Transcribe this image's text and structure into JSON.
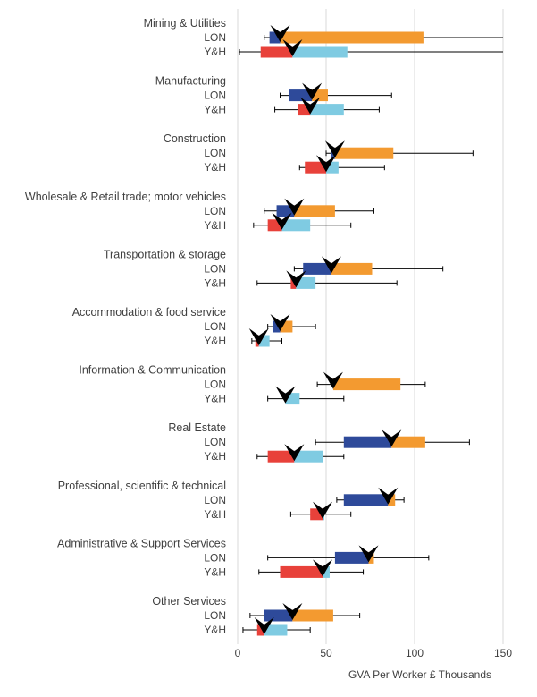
{
  "chart_data": {
    "type": "box-range",
    "xlabel": "GVA Per Worker £ Thousands",
    "xlim": [
      0,
      150
    ],
    "xticks": [
      0,
      50,
      100,
      150
    ],
    "grid": "vertical",
    "region_labels": [
      "LON",
      "Y&H"
    ],
    "colors": {
      "LON_low": "#2E4A9A",
      "LON_high": "#F39A30",
      "YH_low": "#E8413A",
      "YH_high": "#7FCBE2",
      "grid": "#D9D9D9",
      "whisker": "#000000",
      "marker": "#000000"
    },
    "sectors": [
      {
        "name": "Mining & Utilities",
        "LON": {
          "min": 15,
          "q1": 18,
          "median": 24,
          "q3": 105,
          "max": 150
        },
        "YH": {
          "min": 1,
          "q1": 13,
          "median": 31,
          "q3": 62,
          "max": 150
        }
      },
      {
        "name": "Manufacturing",
        "LON": {
          "min": 24,
          "q1": 29,
          "median": 42,
          "q3": 51,
          "max": 87
        },
        "YH": {
          "min": 21,
          "q1": 34,
          "median": 41,
          "q3": 60,
          "max": 80
        }
      },
      {
        "name": "Construction",
        "LON": {
          "min": 50,
          "q1": 53,
          "median": 55,
          "q3": 88,
          "max": 133
        },
        "YH": {
          "min": 35,
          "q1": 38,
          "median": 50,
          "q3": 57,
          "max": 83
        }
      },
      {
        "name": "Wholesale & Retail trade; motor vehicles",
        "LON": {
          "min": 15,
          "q1": 22,
          "median": 32,
          "q3": 55,
          "max": 77
        },
        "YH": {
          "min": 9,
          "q1": 17,
          "median": 25,
          "q3": 41,
          "max": 64
        }
      },
      {
        "name": "Transportation & storage",
        "LON": {
          "min": 32,
          "q1": 37,
          "median": 53,
          "q3": 76,
          "max": 116
        },
        "YH": {
          "min": 11,
          "q1": 30,
          "median": 33,
          "q3": 44,
          "max": 90
        }
      },
      {
        "name": "Accommodation & food service",
        "LON": {
          "min": 17,
          "q1": 20,
          "median": 24,
          "q3": 31,
          "max": 44
        },
        "YH": {
          "min": 8,
          "q1": 10,
          "median": 12,
          "q3": 18,
          "max": 25
        }
      },
      {
        "name": "Information & Communication",
        "LON": {
          "min": 45,
          "q1": 54,
          "median": 54,
          "q3": 92,
          "max": 106
        },
        "YH": {
          "min": 17,
          "q1": 27,
          "median": 27,
          "q3": 35,
          "max": 60
        }
      },
      {
        "name": "Real Estate",
        "LON": {
          "min": 44,
          "q1": 60,
          "median": 87,
          "q3": 106,
          "max": 131
        },
        "YH": {
          "min": 11,
          "q1": 17,
          "median": 32,
          "q3": 48,
          "max": 60
        }
      },
      {
        "name": "Professional, scientific & technical",
        "LON": {
          "min": 56,
          "q1": 60,
          "median": 85,
          "q3": 89,
          "max": 94
        },
        "YH": {
          "min": 30,
          "q1": 41,
          "median": 48,
          "q3": 49,
          "max": 64
        }
      },
      {
        "name": "Administrative & Support Services",
        "LON": {
          "min": 17,
          "q1": 55,
          "median": 74,
          "q3": 77,
          "max": 108
        },
        "YH": {
          "min": 12,
          "q1": 24,
          "median": 48,
          "q3": 52,
          "max": 71
        }
      },
      {
        "name": "Other Services",
        "LON": {
          "min": 7,
          "q1": 15,
          "median": 31,
          "q3": 54,
          "max": 69
        },
        "YH": {
          "min": 3,
          "q1": 11,
          "median": 15,
          "q3": 28,
          "max": 41
        }
      }
    ]
  }
}
